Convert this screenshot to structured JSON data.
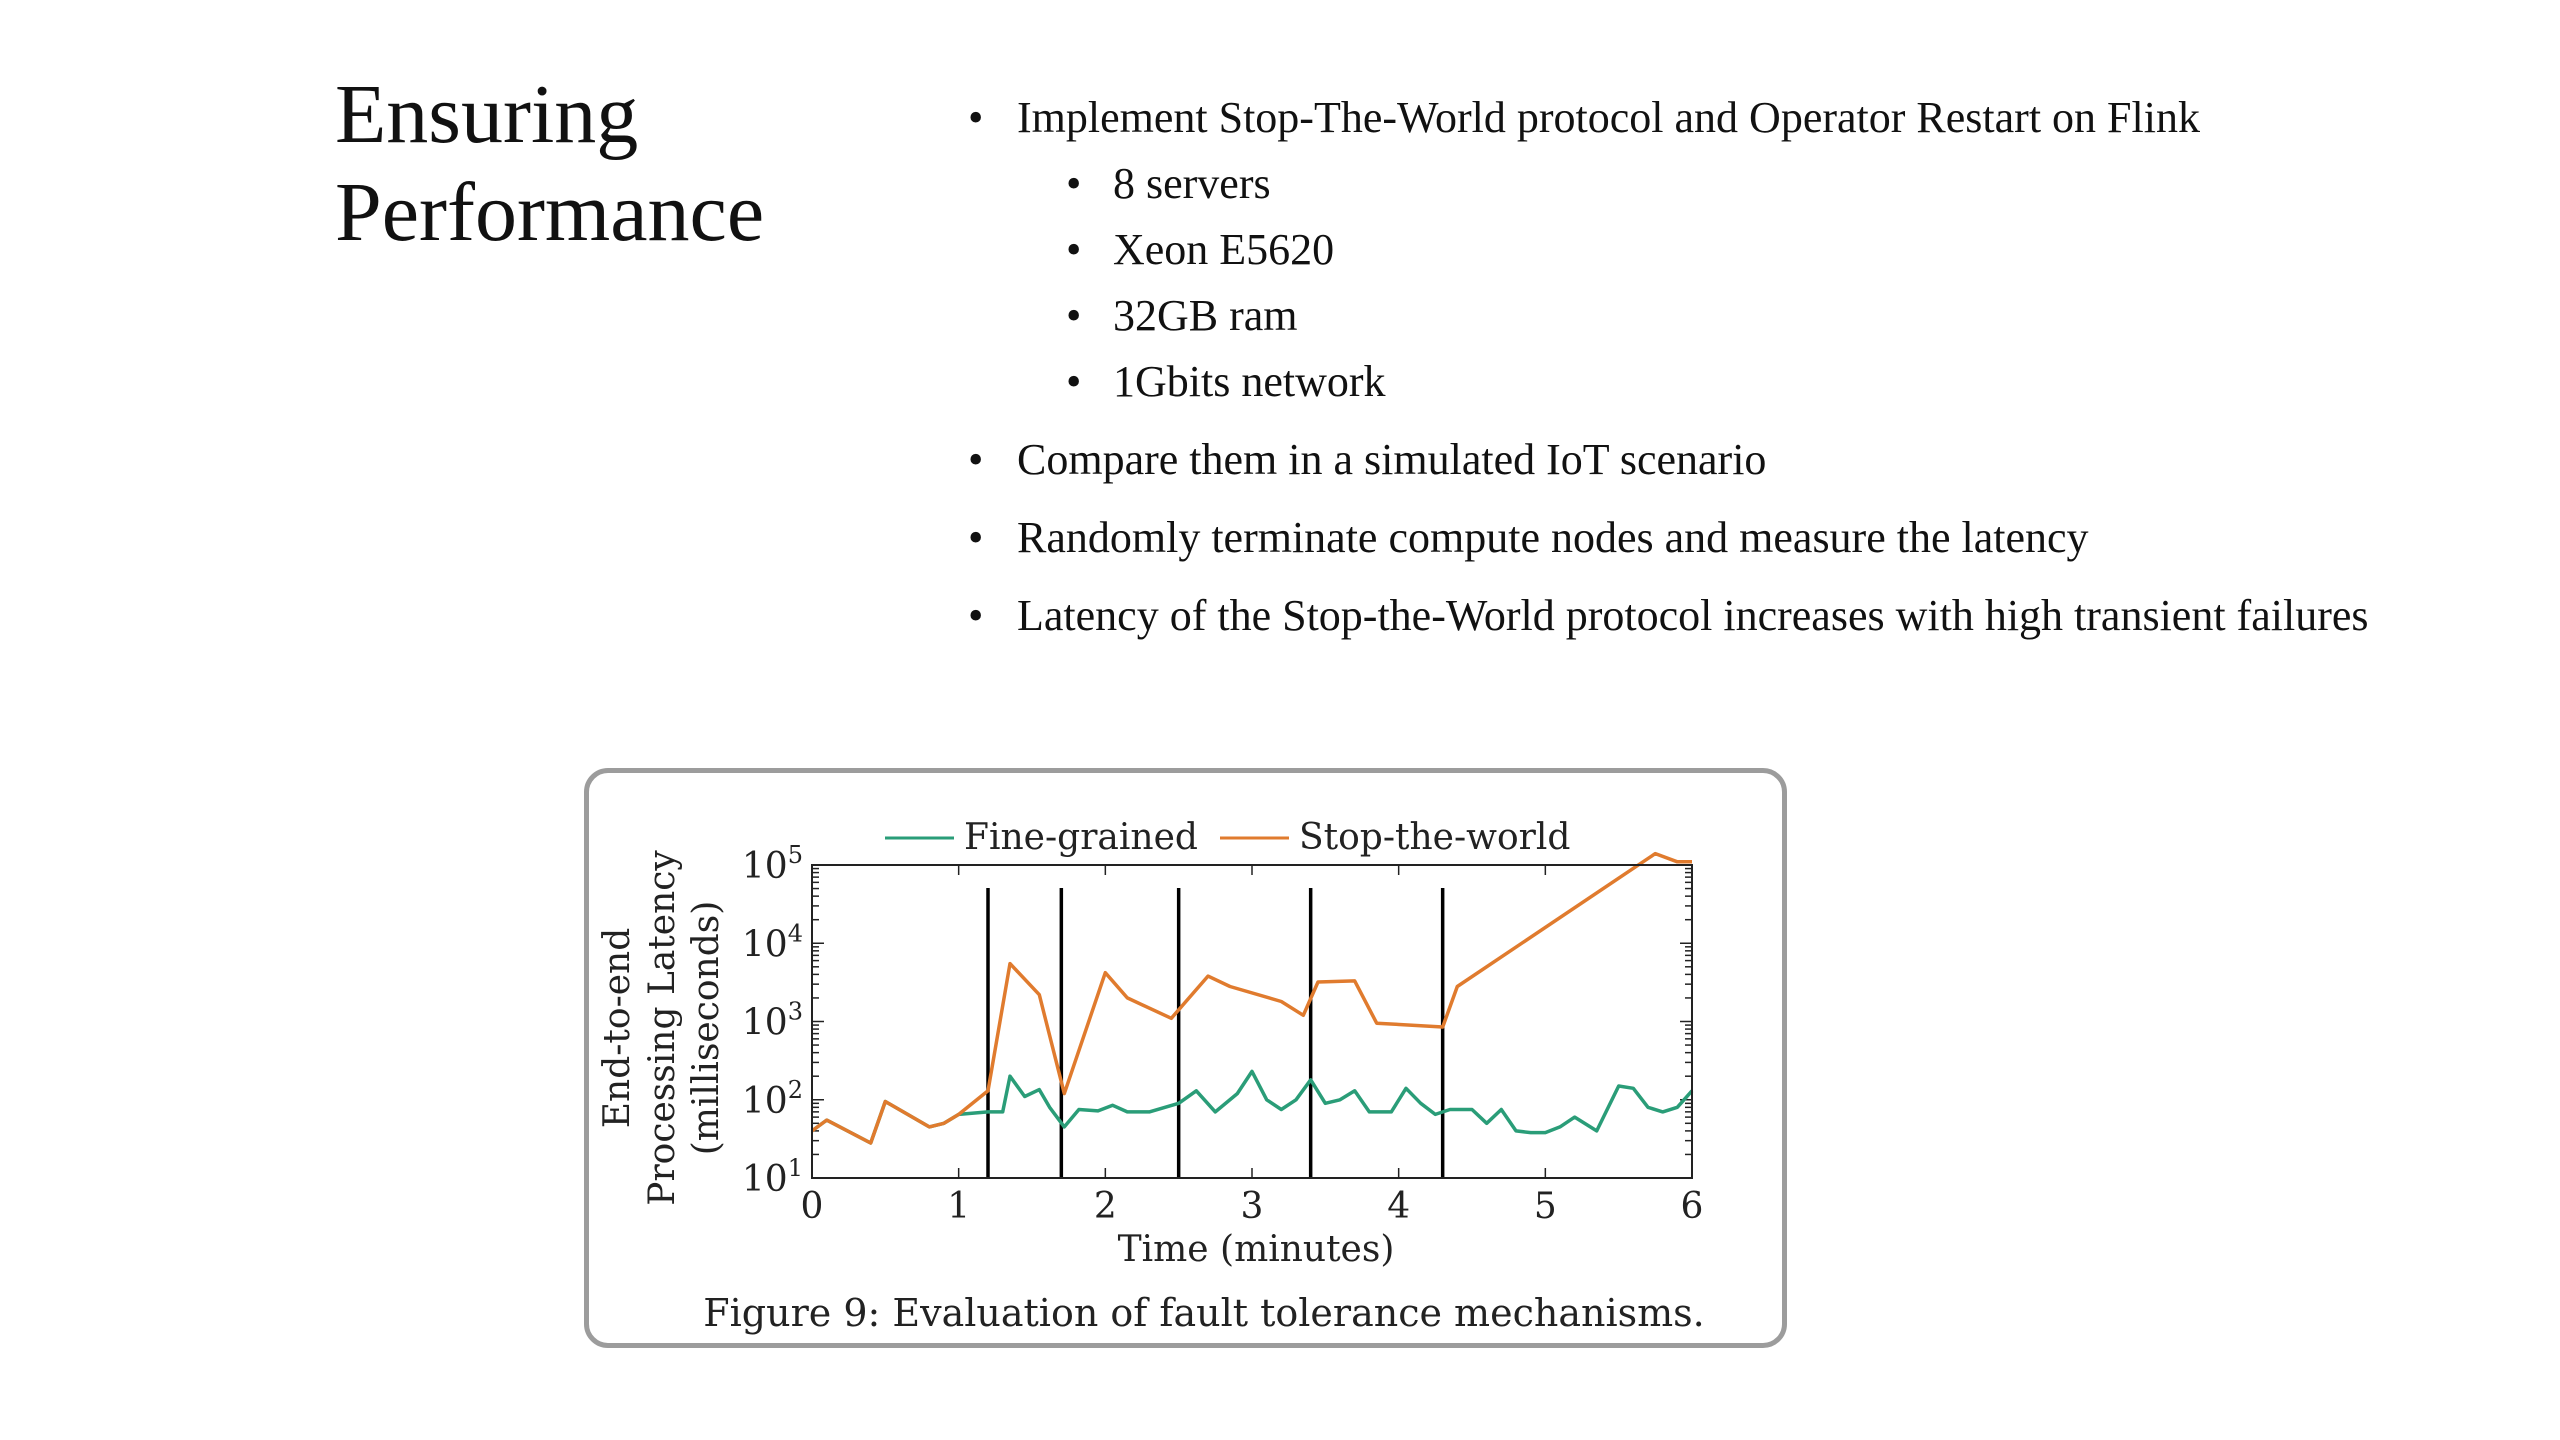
{
  "slide": {
    "title_lines": [
      "Ensuring",
      "Performance"
    ],
    "bullets": [
      {
        "text": "Implement Stop-The-World protocol and Operator Restart on Flink",
        "sub": [
          "8 servers",
          "Xeon E5620",
          "32GB ram",
          "1Gbits network"
        ]
      },
      {
        "text": "Compare them in a simulated IoT scenario"
      },
      {
        "text": "Randomly terminate compute nodes and measure the latency"
      },
      {
        "text": "Latency of the Stop-the-World protocol increases with high transient failures"
      }
    ]
  },
  "figure": {
    "caption": "Figure 9: Evaluation of fault tolerance mechanisms."
  },
  "chart_data": {
    "type": "line",
    "xlabel": "Time (minutes)",
    "ylabel_lines": [
      "End-to-end",
      "Processing Latency",
      "(milliseconds)"
    ],
    "xlim": [
      0,
      6
    ],
    "ylim": [
      10,
      100000
    ],
    "yscale": "log",
    "x_ticks": [
      "0",
      "1",
      "2",
      "3",
      "4",
      "5",
      "6"
    ],
    "y_ticks": [
      {
        "value": 10,
        "base": "10",
        "exp": "1"
      },
      {
        "value": 100,
        "base": "10",
        "exp": "2"
      },
      {
        "value": 1000,
        "base": "10",
        "exp": "3"
      },
      {
        "value": 10000,
        "base": "10",
        "exp": "4"
      },
      {
        "value": 100000,
        "base": "10",
        "exp": "5"
      }
    ],
    "legend_position": "top",
    "failure_events": [
      1.2,
      1.7,
      2.5,
      3.4,
      4.3
    ],
    "series": [
      {
        "name": "Fine-grained",
        "color": "#2a9d78",
        "points": [
          [
            0,
            40
          ],
          [
            0.1,
            55
          ],
          [
            0.4,
            28
          ],
          [
            0.5,
            95
          ],
          [
            0.8,
            45
          ],
          [
            0.9,
            50
          ],
          [
            1.0,
            65
          ],
          [
            1.2,
            70
          ],
          [
            1.3,
            70
          ],
          [
            1.35,
            200
          ],
          [
            1.45,
            110
          ],
          [
            1.55,
            135
          ],
          [
            1.62,
            80
          ],
          [
            1.72,
            45
          ],
          [
            1.82,
            75
          ],
          [
            1.95,
            72
          ],
          [
            2.05,
            85
          ],
          [
            2.15,
            70
          ],
          [
            2.3,
            70
          ],
          [
            2.5,
            90
          ],
          [
            2.62,
            130
          ],
          [
            2.75,
            70
          ],
          [
            2.9,
            120
          ],
          [
            3.0,
            230
          ],
          [
            3.1,
            100
          ],
          [
            3.2,
            75
          ],
          [
            3.3,
            100
          ],
          [
            3.4,
            180
          ],
          [
            3.5,
            90
          ],
          [
            3.6,
            100
          ],
          [
            3.7,
            130
          ],
          [
            3.8,
            70
          ],
          [
            3.95,
            70
          ],
          [
            4.05,
            140
          ],
          [
            4.15,
            90
          ],
          [
            4.25,
            65
          ],
          [
            4.35,
            75
          ],
          [
            4.5,
            75
          ],
          [
            4.6,
            50
          ],
          [
            4.7,
            75
          ],
          [
            4.8,
            40
          ],
          [
            4.9,
            38
          ],
          [
            5.0,
            38
          ],
          [
            5.1,
            45
          ],
          [
            5.2,
            60
          ],
          [
            5.35,
            40
          ],
          [
            5.5,
            150
          ],
          [
            5.6,
            140
          ],
          [
            5.7,
            80
          ],
          [
            5.8,
            70
          ],
          [
            5.9,
            80
          ],
          [
            6.0,
            130
          ]
        ]
      },
      {
        "name": "Stop-the-world",
        "color": "#e07b2e",
        "points": [
          [
            0,
            40
          ],
          [
            0.1,
            55
          ],
          [
            0.4,
            28
          ],
          [
            0.5,
            95
          ],
          [
            0.8,
            45
          ],
          [
            0.9,
            50
          ],
          [
            1.0,
            65
          ],
          [
            1.2,
            130
          ],
          [
            1.35,
            5500
          ],
          [
            1.55,
            2200
          ],
          [
            1.72,
            120
          ],
          [
            2.0,
            4200
          ],
          [
            2.15,
            2000
          ],
          [
            2.45,
            1100
          ],
          [
            2.7,
            3800
          ],
          [
            2.85,
            2800
          ],
          [
            3.2,
            1800
          ],
          [
            3.35,
            1200
          ],
          [
            3.45,
            3200
          ],
          [
            3.7,
            3300
          ],
          [
            3.85,
            950
          ],
          [
            4.3,
            850
          ],
          [
            4.4,
            2800
          ],
          [
            5.75,
            140000
          ],
          [
            5.9,
            110000
          ],
          [
            6.0,
            110000
          ]
        ]
      }
    ]
  }
}
